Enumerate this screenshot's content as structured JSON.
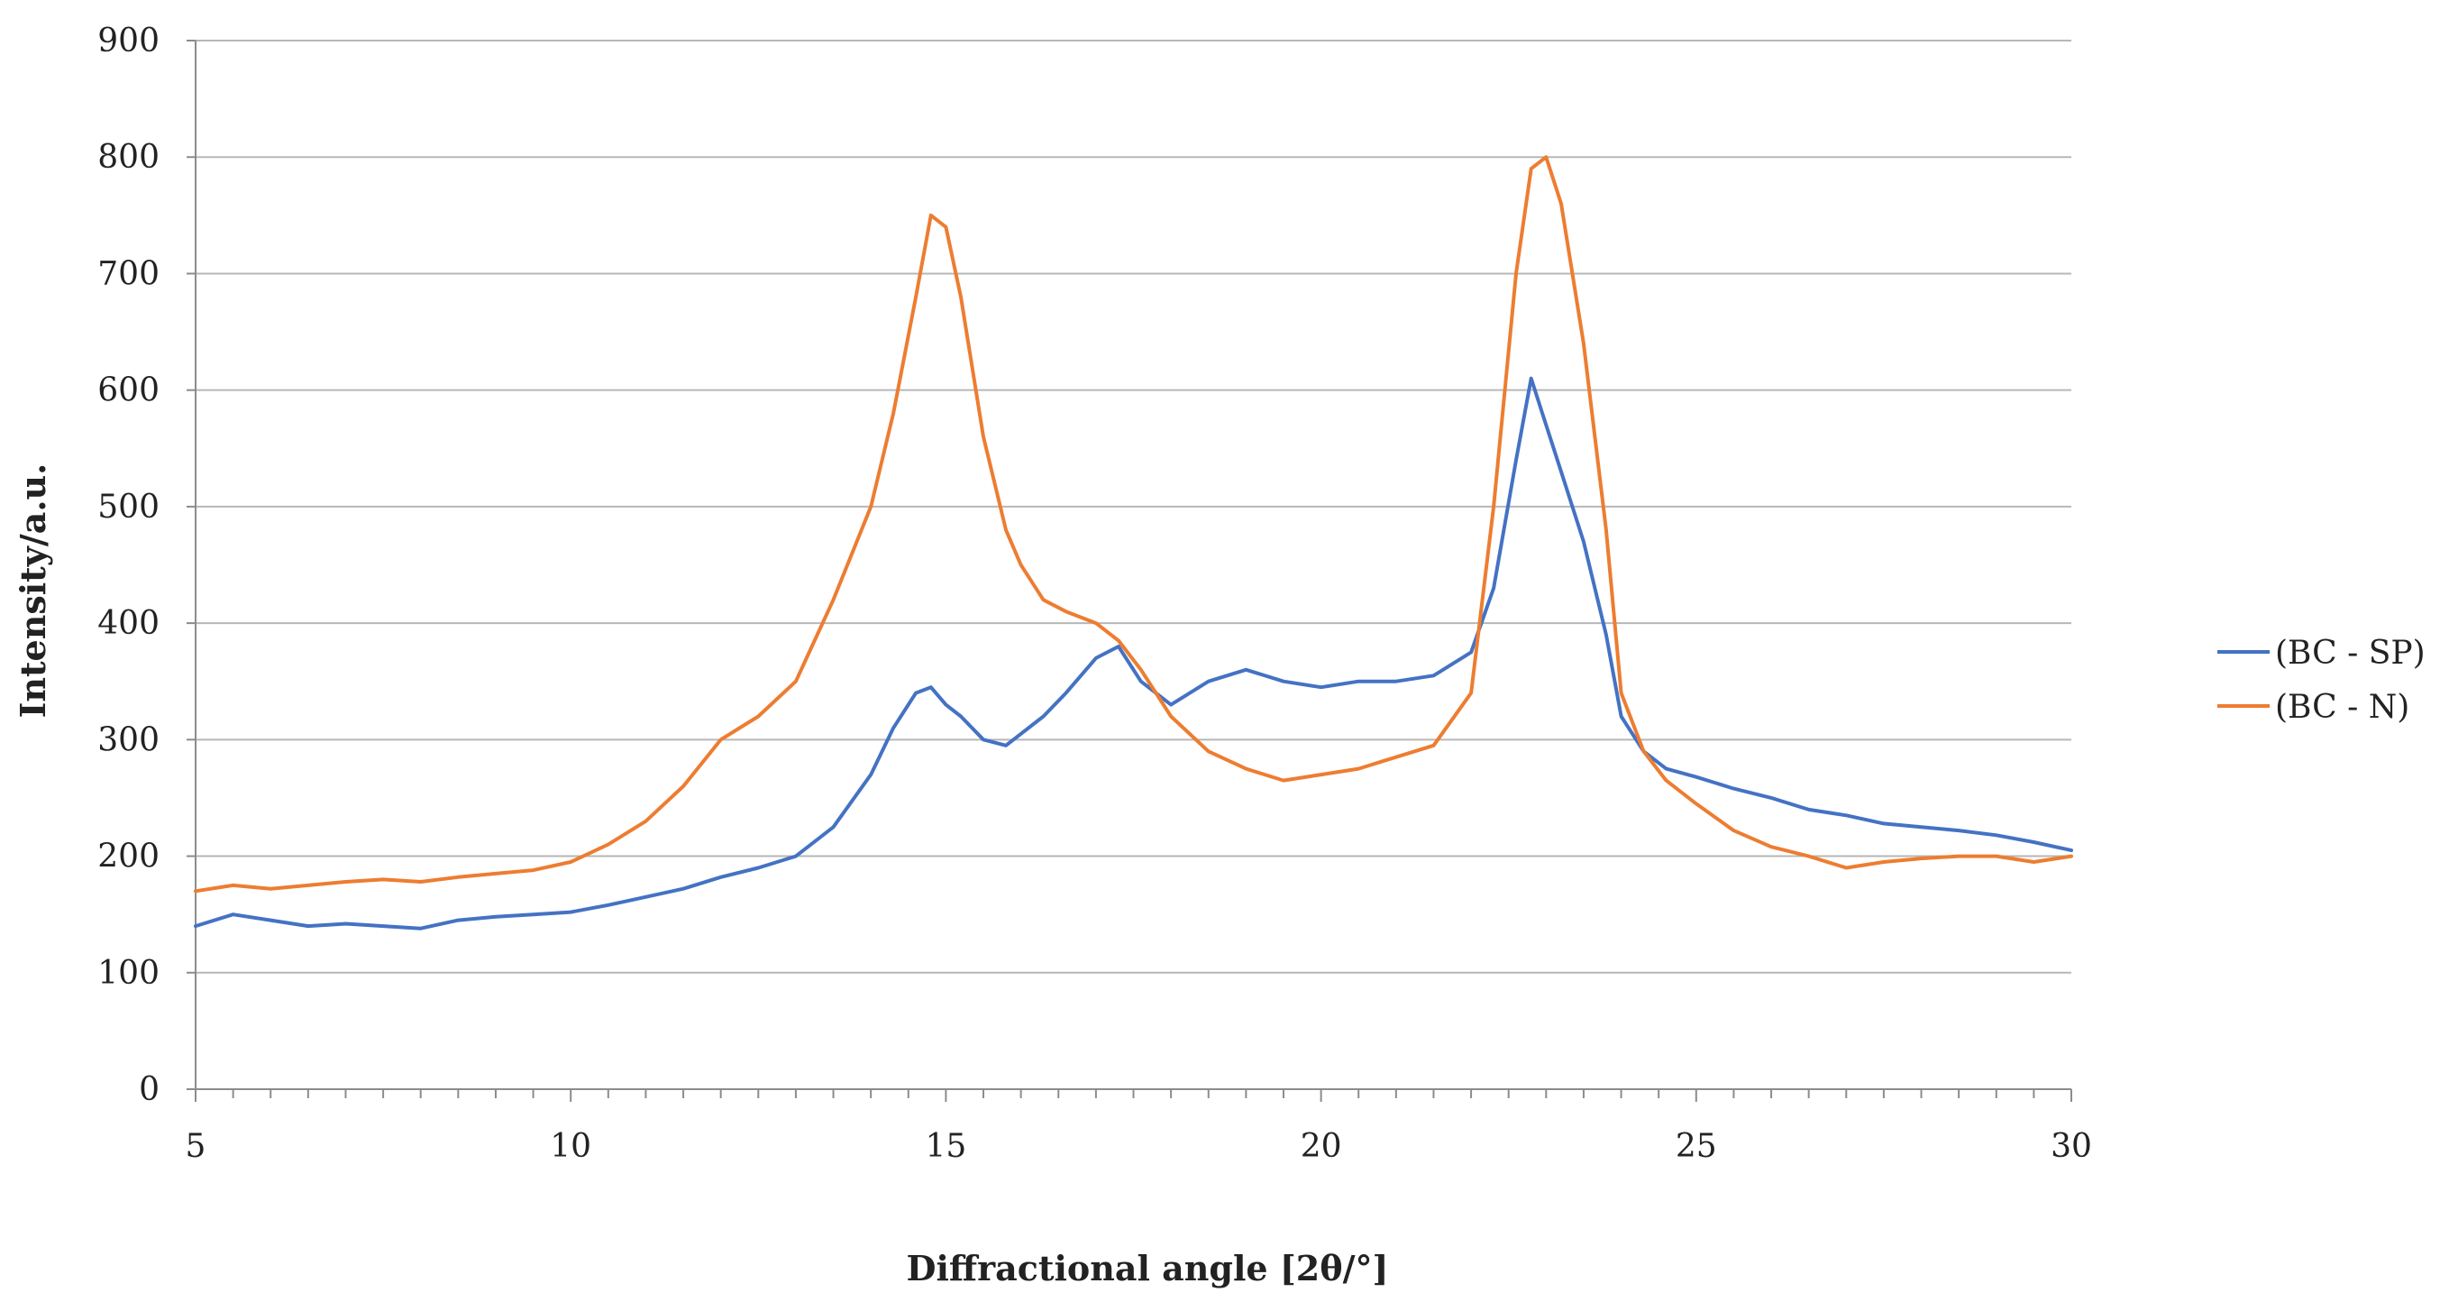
{
  "chart_data": {
    "type": "line",
    "title": "",
    "xlabel": "Diffractional angle [2θ/°]",
    "ylabel": "Intensity/a.u.",
    "xlim": [
      5,
      30
    ],
    "ylim": [
      0,
      900
    ],
    "x_ticks": [
      5,
      10,
      15,
      20,
      25,
      30
    ],
    "y_ticks": [
      0,
      100,
      200,
      300,
      400,
      500,
      600,
      700,
      800,
      900
    ],
    "grid": "horizontal",
    "legend_position": "right",
    "x": [
      5.0,
      5.5,
      6.0,
      6.5,
      7.0,
      7.5,
      8.0,
      8.5,
      9.0,
      9.5,
      10.0,
      10.5,
      11.0,
      11.5,
      12.0,
      12.5,
      13.0,
      13.5,
      14.0,
      14.3,
      14.6,
      14.8,
      15.0,
      15.2,
      15.5,
      15.8,
      16.0,
      16.3,
      16.6,
      17.0,
      17.3,
      17.6,
      18.0,
      18.5,
      19.0,
      19.5,
      20.0,
      20.5,
      21.0,
      21.5,
      22.0,
      22.3,
      22.6,
      22.8,
      23.0,
      23.2,
      23.5,
      23.8,
      24.0,
      24.3,
      24.6,
      25.0,
      25.5,
      26.0,
      26.5,
      27.0,
      27.5,
      28.0,
      28.5,
      29.0,
      29.5,
      30.0
    ],
    "series": [
      {
        "name": "(BC - SP)",
        "color": "#4472C4",
        "values": [
          140,
          150,
          145,
          140,
          142,
          140,
          138,
          145,
          148,
          150,
          152,
          158,
          165,
          172,
          182,
          190,
          200,
          225,
          270,
          310,
          340,
          345,
          330,
          320,
          300,
          295,
          305,
          320,
          340,
          370,
          380,
          350,
          330,
          350,
          360,
          350,
          345,
          350,
          350,
          355,
          375,
          430,
          540,
          610,
          570,
          530,
          470,
          390,
          320,
          290,
          275,
          268,
          258,
          250,
          240,
          235,
          228,
          225,
          222,
          218,
          212,
          205
        ]
      },
      {
        "name": "(BC - N)",
        "color": "#ED7D31",
        "values": [
          170,
          175,
          172,
          175,
          178,
          180,
          178,
          182,
          185,
          188,
          195,
          210,
          230,
          260,
          300,
          320,
          350,
          420,
          500,
          580,
          680,
          750,
          740,
          680,
          560,
          480,
          450,
          420,
          410,
          400,
          385,
          360,
          320,
          290,
          275,
          265,
          270,
          275,
          285,
          295,
          340,
          500,
          700,
          790,
          800,
          760,
          640,
          480,
          340,
          290,
          265,
          245,
          222,
          208,
          200,
          190,
          195,
          198,
          200,
          200,
          195,
          200
        ]
      }
    ]
  }
}
